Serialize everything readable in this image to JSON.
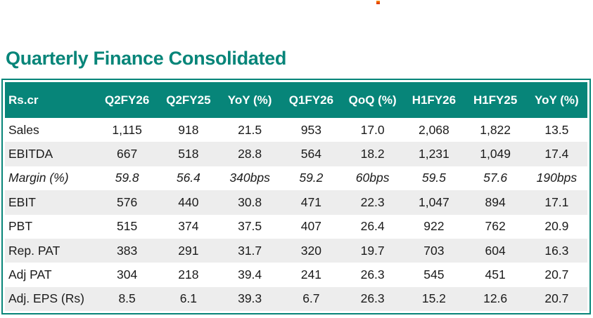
{
  "page": {
    "title": "Quarterly Finance Consolidated"
  },
  "colors": {
    "accent_teal": "#078579",
    "alt_row_gray": "#EDEDED",
    "header_text": "#FFFFFF",
    "body_text": "#1B1B1B",
    "marker_orange": "#E8440A"
  },
  "table": {
    "headers": [
      "Rs.cr",
      "Q2FY26",
      "Q2FY25",
      "YoY (%)",
      "Q1FY26",
      "QoQ (%)",
      "H1FY26",
      "H1FY25",
      "YoY (%)"
    ],
    "rows": [
      {
        "label": "Sales",
        "values": [
          "1,115",
          "918",
          "21.5",
          "953",
          "17.0",
          "2,068",
          "1,822",
          "13.5"
        ],
        "italic": false
      },
      {
        "label": "EBITDA",
        "values": [
          "667",
          "518",
          "28.8",
          "564",
          "18.2",
          "1,231",
          "1,049",
          "17.4"
        ],
        "italic": false
      },
      {
        "label": "Margin (%)",
        "values": [
          "59.8",
          "56.4",
          "340bps",
          "59.2",
          "60bps",
          "59.5",
          "57.6",
          "190bps"
        ],
        "italic": true
      },
      {
        "label": "EBIT",
        "values": [
          "576",
          "440",
          "30.8",
          "471",
          "22.3",
          "1,047",
          "894",
          "17.1"
        ],
        "italic": false
      },
      {
        "label": "PBT",
        "values": [
          "515",
          "374",
          "37.5",
          "407",
          "26.4",
          "922",
          "762",
          "20.9"
        ],
        "italic": false
      },
      {
        "label": "Rep. PAT",
        "values": [
          "383",
          "291",
          "31.7",
          "320",
          "19.7",
          "703",
          "604",
          "16.3"
        ],
        "italic": false
      },
      {
        "label": "Adj PAT",
        "values": [
          "304",
          "218",
          "39.4",
          "241",
          "26.3",
          "545",
          "451",
          "20.7"
        ],
        "italic": false
      },
      {
        "label": "Adj. EPS (Rs)",
        "values": [
          "8.5",
          "6.1",
          "39.3",
          "6.7",
          "26.3",
          "15.2",
          "12.6",
          "20.7"
        ],
        "italic": false
      }
    ]
  }
}
